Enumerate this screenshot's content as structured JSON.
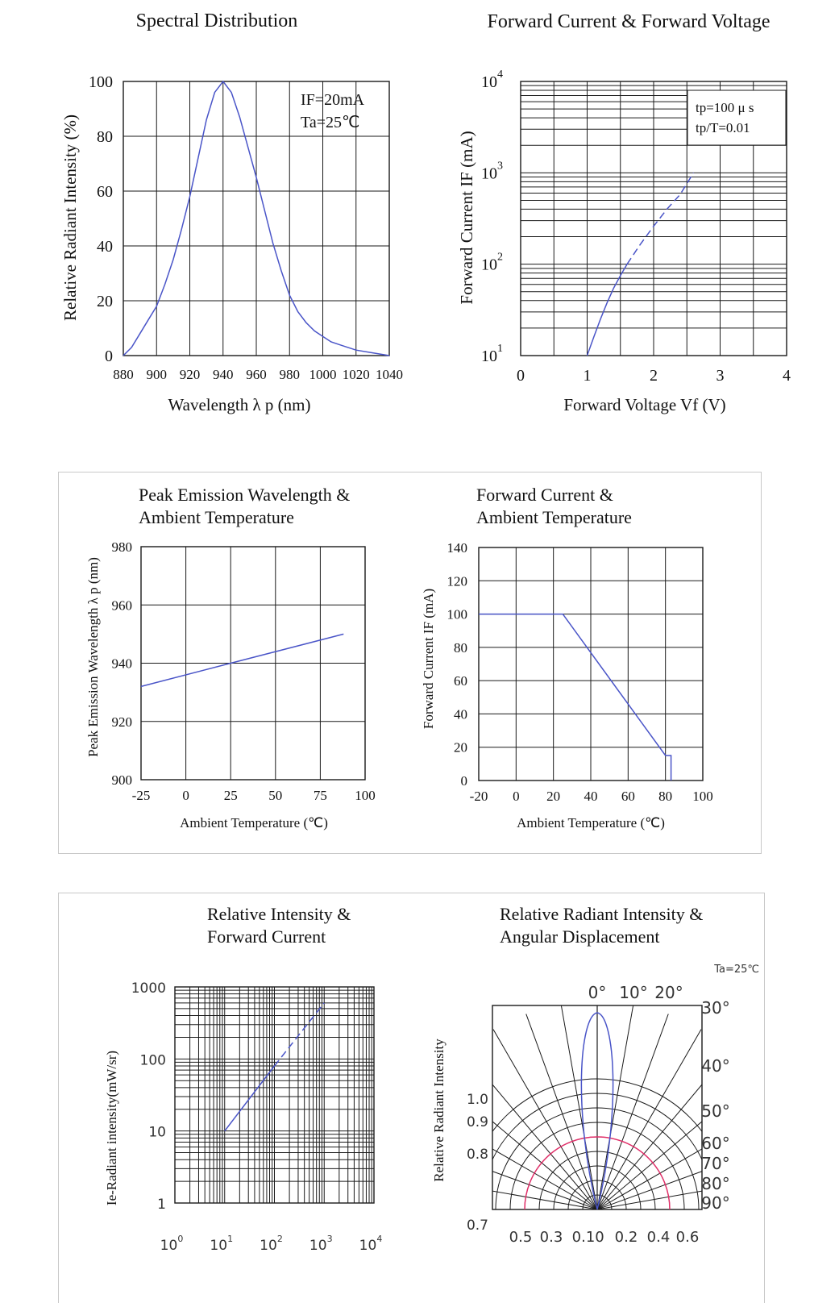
{
  "charts": {
    "spectral": {
      "title": "Spectral Distribution",
      "xlabel": "Wavelength  λ p (nm)",
      "ylabel": "Relative Radiant Intensity (%)",
      "note1": "IF=20mA",
      "note2": "Ta=25℃",
      "xticks": [
        "880",
        "900",
        "920",
        "940",
        "960",
        "980",
        "1000",
        "1020",
        "1040"
      ],
      "yticks": [
        "0",
        "20",
        "40",
        "60",
        "80",
        "100"
      ]
    },
    "fcfv": {
      "title": "Forward Current & Forward Voltage",
      "xlabel": "Forward Voltage Vf (V)",
      "ylabel": "Forward Current IF (mA)",
      "note1": "tp=100 μ s",
      "note2": "tp/T=0.01",
      "xticks": [
        "0",
        "1",
        "2",
        "3",
        "4"
      ]
    },
    "peak": {
      "title1": "Peak Emission Wavelength &",
      "title2": "Ambient Temperature",
      "xlabel": "Ambient Temperature (℃)",
      "ylabel": "Peak Emission Wavelength  λ p (nm)",
      "xticks": [
        "-25",
        "0",
        "25",
        "50",
        "75",
        "100"
      ],
      "yticks": [
        "900",
        "920",
        "940",
        "960",
        "980"
      ]
    },
    "fcat": {
      "title1": "Forward Current &",
      "title2": "Ambient Temperature",
      "xlabel": "Ambient Temperature (℃)",
      "ylabel": "Forward Current IF (mA)",
      "xticks": [
        "-20",
        "0",
        "20",
        "40",
        "60",
        "80",
        "100"
      ],
      "yticks": [
        "0",
        "20",
        "40",
        "60",
        "80",
        "100",
        "120",
        "140"
      ]
    },
    "rifc": {
      "title1": "Relative Intensity &",
      "title2": "Forward Current",
      "ylabel": "Ie-Radiant intensity(mW/sr)",
      "yticks": [
        "1",
        "10",
        "100",
        "1000"
      ]
    },
    "angular": {
      "title1": "Relative Radiant Intensity &",
      "title2": "Angular Displacement",
      "ylabel": "Relative Radiant Intensity",
      "ta": "Ta=25℃",
      "angle_labels": [
        "0°",
        "10°",
        "20°",
        "30°",
        "40°",
        "50°",
        "60°",
        "70°",
        "80°",
        "90°"
      ],
      "rlabels": [
        "1.0",
        "0.9",
        "0.8",
        "0.7"
      ],
      "bottom_labels": [
        "0.5",
        "0.3",
        "0.1",
        "0",
        "0.2",
        "0.4",
        "0.6"
      ]
    }
  },
  "chart_data": [
    {
      "type": "line",
      "title": "Spectral Distribution",
      "xlabel": "Wavelength λ p (nm)",
      "ylabel": "Relative Radiant Intensity (%)",
      "xlim": [
        880,
        1040
      ],
      "ylim": [
        0,
        100
      ],
      "grid": true,
      "x": [
        880,
        885,
        890,
        895,
        900,
        905,
        910,
        915,
        920,
        925,
        930,
        935,
        940,
        945,
        950,
        955,
        960,
        965,
        970,
        975,
        980,
        985,
        990,
        995,
        1000,
        1005,
        1010,
        1015,
        1020,
        1030,
        1040
      ],
      "y": [
        0,
        3,
        8,
        13,
        18,
        26,
        35,
        46,
        58,
        72,
        86,
        96,
        100,
        96,
        87,
        76,
        65,
        53,
        41,
        31,
        22,
        16,
        12,
        9,
        7,
        5,
        4,
        3,
        2,
        1,
        0
      ]
    },
    {
      "type": "line",
      "title": "Forward Current & Forward Voltage",
      "xlabel": "Forward Voltage Vf (V)",
      "ylabel": "Forward Current IF (mA)",
      "xlim": [
        0,
        4
      ],
      "ylim": [
        10,
        10000
      ],
      "yscale": "log",
      "grid": true,
      "x": [
        1.0,
        1.1,
        1.2,
        1.3,
        1.4,
        1.5,
        1.6,
        1.8,
        2.0,
        2.2,
        2.4,
        2.6
      ],
      "y": [
        10,
        16,
        25,
        38,
        55,
        75,
        100,
        165,
        260,
        400,
        580,
        1000
      ]
    },
    {
      "type": "line",
      "title": "Peak Emission Wavelength & Ambient Temperature",
      "xlabel": "Ambient Temperature (℃)",
      "ylabel": "Peak Emission Wavelength λ p (nm)",
      "xlim": [
        -25,
        100
      ],
      "ylim": [
        900,
        980
      ],
      "grid": true,
      "x": [
        -25,
        25,
        88
      ],
      "y": [
        932,
        940,
        950
      ]
    },
    {
      "type": "line",
      "title": "Forward Current & Ambient Temperature",
      "xlabel": "Ambient Temperature (℃)",
      "ylabel": "Forward Current IF (mA)",
      "xlim": [
        -20,
        100
      ],
      "ylim": [
        0,
        140
      ],
      "grid": true,
      "x": [
        -20,
        25,
        80,
        83,
        83
      ],
      "y": [
        100,
        100,
        15,
        15,
        0
      ]
    },
    {
      "type": "line",
      "title": "Relative Intensity & Forward Current",
      "ylabel": "Ie-Radiant intensity(mW/sr)",
      "xlim": [
        1,
        10000
      ],
      "ylim": [
        1,
        1000
      ],
      "xscale": "log",
      "yscale": "log",
      "grid": true,
      "x": [
        10,
        100,
        1000
      ],
      "y": [
        10,
        80,
        600
      ]
    },
    {
      "type": "line",
      "title": "Relative Radiant Intensity & Angular Displacement",
      "ylabel": "Relative Radiant Intensity",
      "grid": true,
      "note": "Ta=25℃"
    }
  ]
}
